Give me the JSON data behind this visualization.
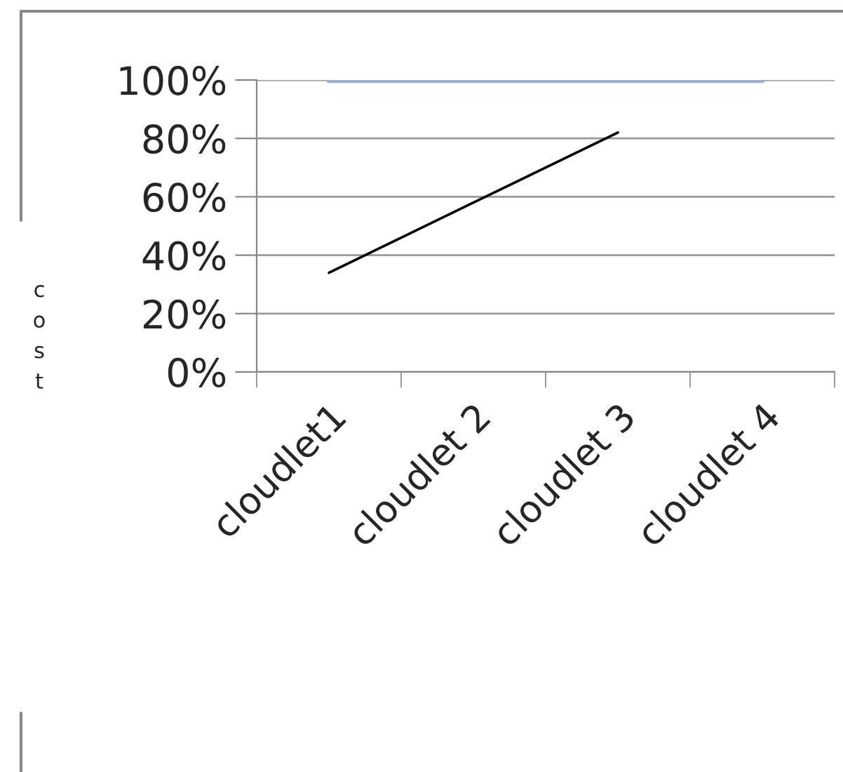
{
  "chart_data": {
    "type": "line",
    "ylabel": "cost",
    "categories": [
      "cloudlet1",
      "cloudlet 2",
      "cloudlet 3",
      "cloudlet 4"
    ],
    "series": [
      {
        "color": "#9bb0cc",
        "values": [
          100,
          100,
          100,
          100
        ]
      },
      {
        "type": "line",
        "color": "#000000",
        "values": [
          34,
          58,
          82,
          null
        ]
      }
    ],
    "ylim": [
      0,
      100
    ],
    "yticks": [
      {
        "value": 0,
        "label": "0%"
      },
      {
        "value": 20,
        "label": "20%"
      },
      {
        "value": 40,
        "label": "40%"
      },
      {
        "value": 60,
        "label": "60%"
      },
      {
        "value": 80,
        "label": "80%"
      },
      {
        "value": 100,
        "label": "100%"
      }
    ],
    "grid": "y",
    "marker": "none",
    "line_style": "solid"
  }
}
